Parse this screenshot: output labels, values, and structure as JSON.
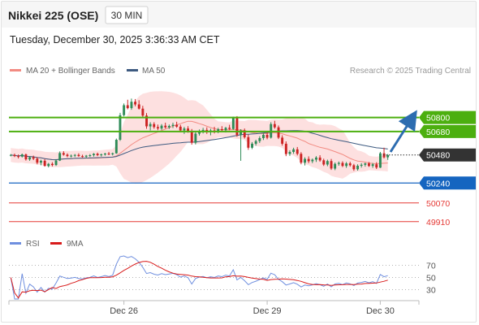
{
  "header": {
    "title": "Nikkei 225 (OSE)",
    "timeframe": "30 MIN",
    "timestamp": "Tuesday, December 30, 2025 3:36:33 AM CET",
    "copyright": "Research © 2025 Trading Central"
  },
  "legend": {
    "ma20_label": "MA 20 + Bollinger Bands",
    "ma50_label": "MA 50",
    "rsi_label": "RSI",
    "ma9_label": "9MA"
  },
  "colors": {
    "up": "#2e8b57",
    "down": "#cc2222",
    "resistance": "#4caf0f",
    "support": "#1565c0",
    "support_red": "#e53935",
    "current": "#333333",
    "bollinger_fill": "#fde0e0",
    "ma20": "#f28b82",
    "ma50": "#3d5a80",
    "rsi": "#6f8fdf",
    "rsi_ma": "#d81b1b",
    "arrow": "#2c6cb0"
  },
  "chart_data": {
    "type": "candlestick",
    "x_ticks": [
      "Dec 26",
      "Dec 29",
      "Dec 30"
    ],
    "price_range": [
      49860,
      51110
    ],
    "candles": [
      [
        50475,
        50488,
        50468,
        50480
      ],
      [
        50480,
        50492,
        50462,
        50470
      ],
      [
        50470,
        50484,
        50450,
        50466
      ],
      [
        50466,
        50492,
        50458,
        50484
      ],
      [
        50484,
        50492,
        50432,
        50442
      ],
      [
        50442,
        50468,
        50430,
        50460
      ],
      [
        50460,
        50474,
        50436,
        50448
      ],
      [
        50448,
        50462,
        50400,
        50414
      ],
      [
        50414,
        50440,
        50392,
        50430
      ],
      [
        50430,
        50444,
        50380,
        50386
      ],
      [
        50386,
        50412,
        50374,
        50404
      ],
      [
        50404,
        50418,
        50382,
        50394
      ],
      [
        50394,
        50444,
        50386,
        50432
      ],
      [
        50432,
        50510,
        50428,
        50496
      ],
      [
        50496,
        50512,
        50474,
        50482
      ],
      [
        50482,
        50494,
        50460,
        50470
      ],
      [
        50470,
        50484,
        50458,
        50474
      ],
      [
        50474,
        50488,
        50462,
        50480
      ],
      [
        50480,
        50494,
        50464,
        50470
      ],
      [
        50470,
        50482,
        50458,
        50466
      ],
      [
        50466,
        50480,
        50450,
        50474
      ],
      [
        50474,
        50488,
        50462,
        50478
      ],
      [
        50478,
        50496,
        50466,
        50490
      ],
      [
        50490,
        50500,
        50470,
        50478
      ],
      [
        50478,
        50492,
        50466,
        50484
      ],
      [
        50484,
        50498,
        50474,
        50492
      ],
      [
        50492,
        50506,
        50478,
        50486
      ],
      [
        50486,
        50500,
        50476,
        50494
      ],
      [
        50494,
        50620,
        50490,
        50610
      ],
      [
        50610,
        50840,
        50600,
        50820
      ],
      [
        50820,
        50920,
        50810,
        50905
      ],
      [
        50905,
        50952,
        50870,
        50880
      ],
      [
        50880,
        50962,
        50866,
        50935
      ],
      [
        50935,
        50958,
        50896,
        50912
      ],
      [
        50912,
        50948,
        50868,
        50876
      ],
      [
        50876,
        50900,
        50804,
        50816
      ],
      [
        50816,
        50838,
        50704,
        50724
      ],
      [
        50724,
        50760,
        50690,
        50744
      ],
      [
        50744,
        50760,
        50704,
        50718
      ],
      [
        50718,
        50740,
        50692,
        50706
      ],
      [
        50706,
        50744,
        50694,
        50730
      ],
      [
        50730,
        50756,
        50706,
        50716
      ],
      [
        50716,
        50740,
        50702,
        50728
      ],
      [
        50728,
        50756,
        50710,
        50738
      ],
      [
        50738,
        50764,
        50712,
        50722
      ],
      [
        50722,
        50738,
        50674,
        50690
      ],
      [
        50690,
        50720,
        50660,
        50706
      ],
      [
        50706,
        50726,
        50670,
        50684
      ],
      [
        50684,
        50702,
        50568,
        50584
      ],
      [
        50584,
        50676,
        50570,
        50662
      ],
      [
        50662,
        50698,
        50646,
        50684
      ],
      [
        50684,
        50712,
        50664,
        50694
      ],
      [
        50694,
        50716,
        50660,
        50676
      ],
      [
        50676,
        50704,
        50648,
        50690
      ],
      [
        50690,
        50720,
        50664,
        50680
      ],
      [
        50680,
        50712,
        50666,
        50700
      ],
      [
        50700,
        50726,
        50678,
        50692
      ],
      [
        50692,
        50720,
        50672,
        50712
      ],
      [
        50712,
        50738,
        50692,
        50702
      ],
      [
        50702,
        50808,
        50694,
        50794
      ],
      [
        50794,
        50812,
        50636,
        50650
      ],
      [
        50650,
        50700,
        50430,
        50690
      ],
      [
        50690,
        50706,
        50620,
        50632
      ],
      [
        50632,
        50654,
        50524,
        50542
      ],
      [
        50542,
        50590,
        50530,
        50576
      ],
      [
        50576,
        50610,
        50560,
        50598
      ],
      [
        50598,
        50640,
        50582,
        50624
      ],
      [
        50624,
        50664,
        50608,
        50652
      ],
      [
        50652,
        50674,
        50614,
        50628
      ],
      [
        50628,
        50760,
        50620,
        50744
      ],
      [
        50744,
        50772,
        50704,
        50716
      ],
      [
        50716,
        50732,
        50616,
        50628
      ],
      [
        50628,
        50648,
        50560,
        50576
      ],
      [
        50576,
        50596,
        50470,
        50488
      ],
      [
        50488,
        50520,
        50472,
        50506
      ],
      [
        50506,
        50542,
        50490,
        50528
      ],
      [
        50528,
        50548,
        50476,
        50490
      ],
      [
        50490,
        50504,
        50400,
        50414
      ],
      [
        50414,
        50460,
        50390,
        50446
      ],
      [
        50446,
        50468,
        50410,
        50426
      ],
      [
        50426,
        50450,
        50410,
        50440
      ],
      [
        50440,
        50470,
        50420,
        50458
      ],
      [
        50458,
        50478,
        50422,
        50434
      ],
      [
        50434,
        50448,
        50386,
        50398
      ],
      [
        50398,
        50440,
        50384,
        50428
      ],
      [
        50428,
        50446,
        50352,
        50364
      ],
      [
        50364,
        50416,
        50350,
        50404
      ],
      [
        50404,
        50424,
        50388,
        50412
      ],
      [
        50412,
        50426,
        50376,
        50386
      ],
      [
        50386,
        50420,
        50370,
        50408
      ],
      [
        50408,
        50422,
        50380,
        50392
      ],
      [
        50392,
        50404,
        50344,
        50358
      ],
      [
        50358,
        50400,
        50346,
        50388
      ],
      [
        50388,
        50410,
        50372,
        50396
      ],
      [
        50396,
        50414,
        50380,
        50408
      ],
      [
        50408,
        50420,
        50378,
        50386
      ],
      [
        50386,
        50412,
        50370,
        50400
      ],
      [
        50400,
        50418,
        50360,
        50372
      ],
      [
        50372,
        50506,
        50368,
        50494
      ],
      [
        50494,
        50542,
        50450,
        50460
      ],
      [
        50460,
        50488,
        50438,
        50478
      ]
    ],
    "levels": [
      {
        "value": 50800,
        "label": "50800",
        "kind": "resistance"
      },
      {
        "value": 50680,
        "label": "50680",
        "kind": "resistance"
      },
      {
        "value": 50480,
        "label": "50480",
        "kind": "current"
      },
      {
        "value": 50240,
        "label": "50240",
        "kind": "support"
      },
      {
        "value": 50070,
        "label": "50070",
        "kind": "support_red"
      },
      {
        "value": 49910,
        "label": "49910",
        "kind": "support_red"
      }
    ],
    "rsi_levels": [
      70,
      50,
      30
    ],
    "rsi_range": [
      15,
      85
    ]
  }
}
